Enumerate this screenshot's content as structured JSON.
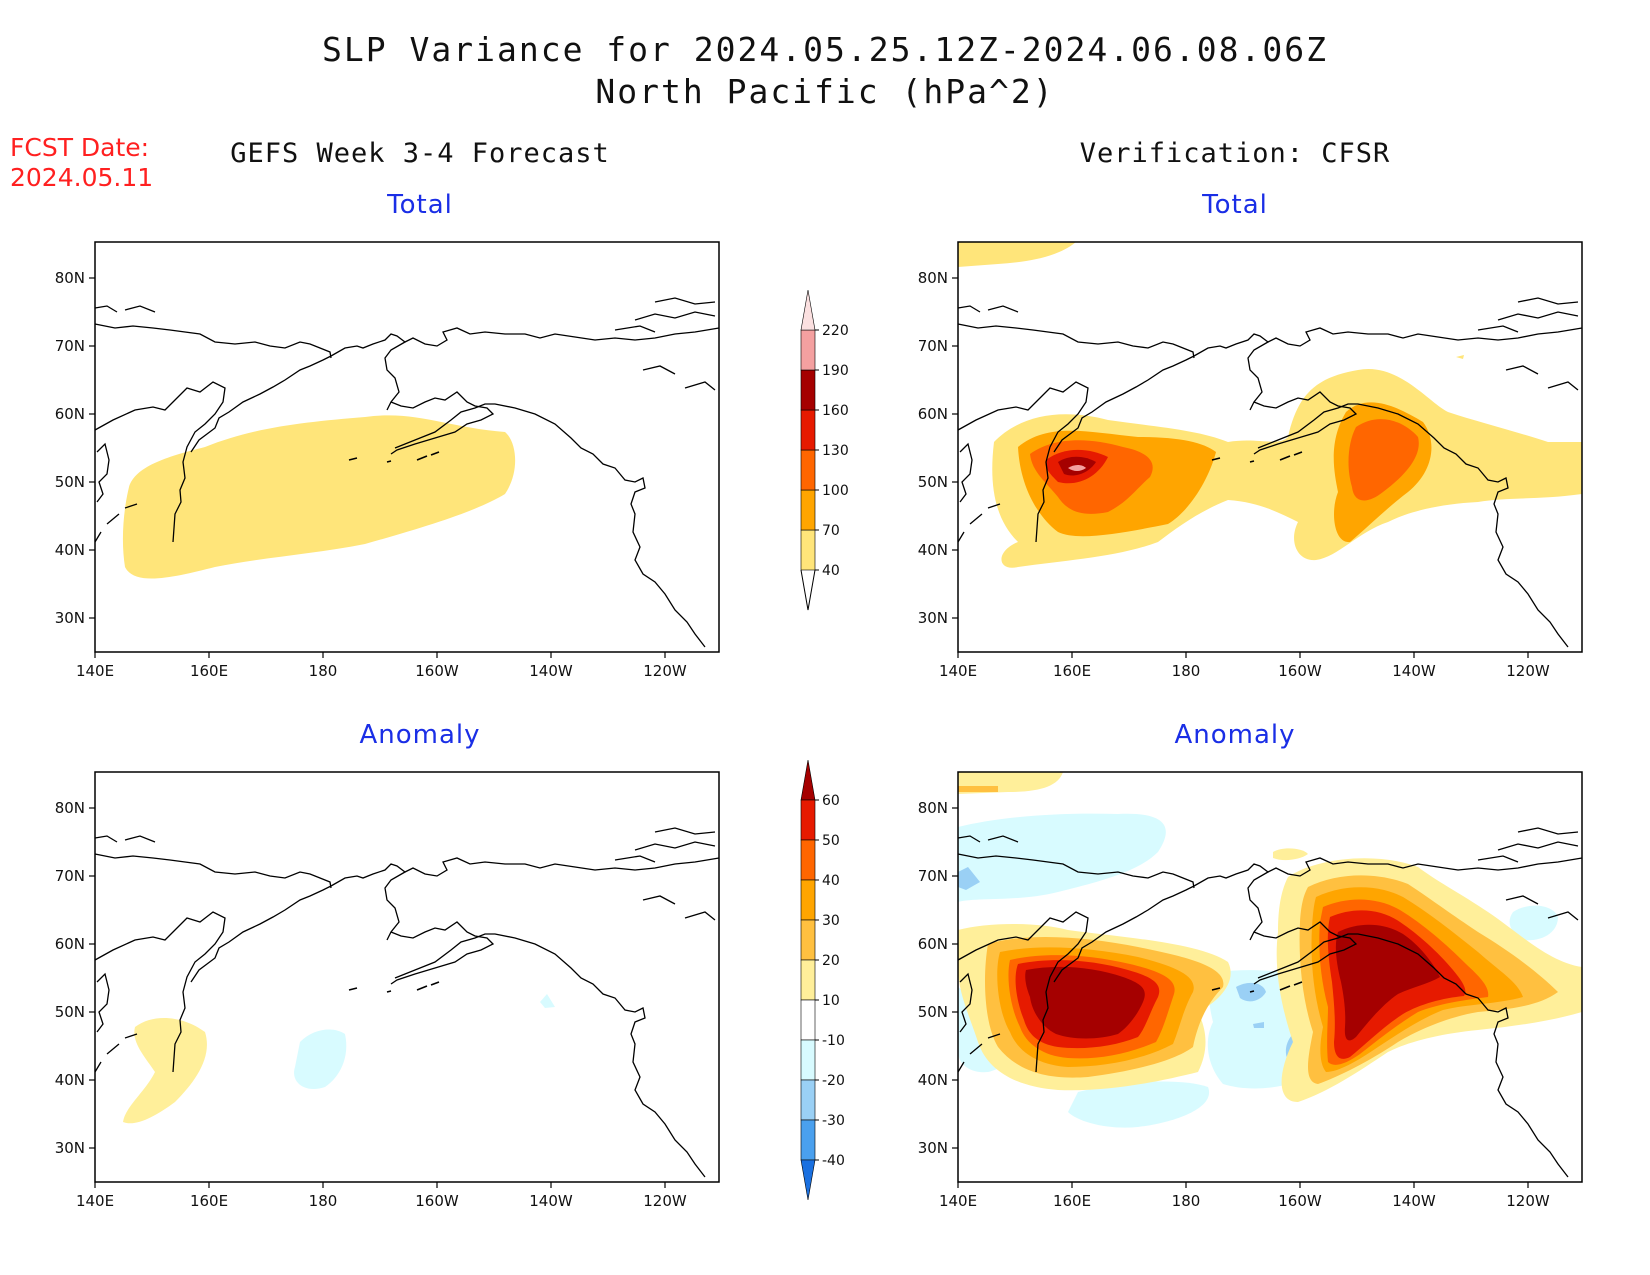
{
  "header": {
    "title_line1": "SLP Variance for 2024.05.25.12Z-2024.06.08.06Z",
    "title_line2": "North Pacific (hPa^2)",
    "fcst_label": "FCST Date:",
    "fcst_date": "2024.05.11"
  },
  "columns": {
    "left_title": "GEFS Week 3-4 Forecast",
    "right_title": "Verification: CFSR"
  },
  "panels": {
    "total_title": "Total",
    "anomaly_title": "Anomaly"
  },
  "axes": {
    "lon_labels": [
      "140E",
      "160E",
      "180",
      "160W",
      "140W",
      "120W"
    ],
    "lat_labels": [
      "80N",
      "70N",
      "60N",
      "50N",
      "40N",
      "30N"
    ]
  },
  "colorbar_total": {
    "labels": [
      "40",
      "70",
      "100",
      "130",
      "160",
      "190",
      "220"
    ],
    "colors": [
      "#ffe57a",
      "#ffa500",
      "#ff6600",
      "#e61a00",
      "#a50000",
      "#f4a0a0",
      "#fbe0e0"
    ]
  },
  "colorbar_anomaly": {
    "labels": [
      "60",
      "50",
      "40",
      "30",
      "20",
      "10",
      "-10",
      "-20",
      "-30",
      "-40"
    ],
    "colors": [
      "#a50000",
      "#e61a00",
      "#ff6600",
      "#ffa500",
      "#ffc040",
      "#ffef9a",
      "#ffffff",
      "#d8fbff",
      "#9ad0f5",
      "#4aa0ee",
      "#1a70e0"
    ]
  }
}
